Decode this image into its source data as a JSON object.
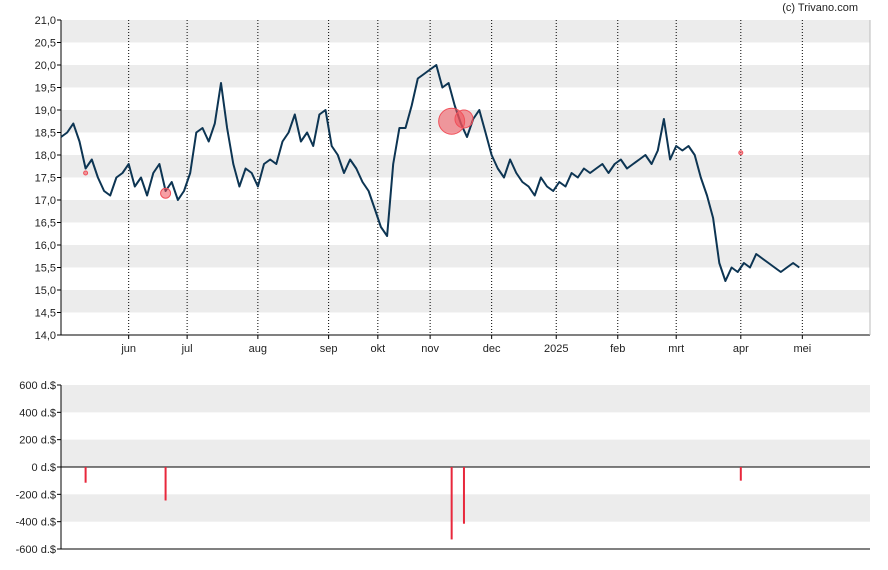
{
  "credit": "(c) Trivano.com",
  "colors": {
    "line": "#0d3553",
    "marker": "#f0505a",
    "band": "#ececec",
    "bar": "#e8283c",
    "axis": "#000000"
  },
  "chart_data": [
    {
      "type": "line",
      "title": "",
      "xlabel": "",
      "ylabel": "",
      "ylim": [
        14.0,
        21.0
      ],
      "xlim": [
        0,
        263
      ],
      "y_ticks": [
        "14,0",
        "14,5",
        "15,0",
        "15,5",
        "16,0",
        "16,5",
        "17,0",
        "17,5",
        "18,0",
        "18,5",
        "19,0",
        "19,5",
        "20,0",
        "20,5",
        "21,0"
      ],
      "x_ticks": [
        {
          "x": 22,
          "label": "jun"
        },
        {
          "x": 41,
          "label": "jul"
        },
        {
          "x": 64,
          "label": "aug"
        },
        {
          "x": 87,
          "label": "sep"
        },
        {
          "x": 103,
          "label": "okt"
        },
        {
          "x": 120,
          "label": "nov"
        },
        {
          "x": 140,
          "label": "dec"
        },
        {
          "x": 161,
          "label": "2025"
        },
        {
          "x": 181,
          "label": "feb"
        },
        {
          "x": 200,
          "label": "mrt"
        },
        {
          "x": 221,
          "label": "apr"
        },
        {
          "x": 241,
          "label": "mei"
        }
      ],
      "grid": true,
      "series": [
        {
          "x": [
            0,
            2,
            4,
            6,
            8,
            10,
            12,
            14,
            16,
            18,
            20,
            22,
            24,
            26,
            28,
            30,
            32,
            34,
            36,
            38,
            40,
            42,
            44,
            46,
            48,
            50,
            52,
            54,
            56,
            58,
            60,
            62,
            64,
            66,
            68,
            70,
            72,
            74,
            76,
            78,
            80,
            82,
            84,
            86,
            88,
            90,
            92,
            94,
            96,
            98,
            100,
            102,
            104,
            106,
            108,
            110,
            112,
            114,
            116,
            118,
            120,
            122,
            124,
            126,
            128,
            130,
            132,
            134,
            136,
            138,
            140,
            142,
            144,
            146,
            148,
            150,
            152,
            154,
            156,
            158,
            160,
            162,
            164,
            166,
            168,
            170,
            172,
            174,
            176,
            178,
            180,
            182,
            184,
            186,
            188,
            190,
            192,
            194,
            196,
            198,
            200,
            202,
            204,
            206,
            208,
            210,
            212,
            214,
            216,
            218,
            220,
            222,
            224,
            226,
            228,
            230,
            232,
            234,
            236,
            238,
            240
          ],
          "values": [
            18.4,
            18.5,
            18.7,
            18.3,
            17.7,
            17.9,
            17.5,
            17.2,
            17.1,
            17.5,
            17.6,
            17.8,
            17.3,
            17.5,
            17.1,
            17.6,
            17.8,
            17.2,
            17.4,
            17.0,
            17.2,
            17.6,
            18.5,
            18.6,
            18.3,
            18.7,
            19.6,
            18.6,
            17.8,
            17.3,
            17.7,
            17.6,
            17.3,
            17.8,
            17.9,
            17.8,
            18.3,
            18.5,
            18.9,
            18.3,
            18.5,
            18.2,
            18.9,
            19.0,
            18.2,
            18.0,
            17.6,
            17.9,
            17.7,
            17.4,
            17.2,
            16.8,
            16.4,
            16.2,
            17.8,
            18.6,
            18.6,
            19.1,
            19.7,
            19.8,
            19.9,
            20.0,
            19.5,
            19.6,
            19.1,
            18.7,
            18.4,
            18.8,
            19.0,
            18.5,
            18.0,
            17.7,
            17.5,
            17.9,
            17.6,
            17.4,
            17.3,
            17.1,
            17.5,
            17.3,
            17.2,
            17.4,
            17.3,
            17.6,
            17.5,
            17.7,
            17.6,
            17.7,
            17.8,
            17.6,
            17.8,
            17.9,
            17.7,
            17.8,
            17.9,
            18.0,
            17.8,
            18.1,
            18.8,
            17.9,
            18.2,
            18.1,
            18.2,
            18.0,
            17.5,
            17.1,
            16.6,
            15.6,
            15.2,
            15.5,
            15.4,
            15.6,
            15.5,
            15.8,
            15.7,
            15.6,
            15.5,
            15.4,
            15.5,
            15.6,
            15.5
          ]
        }
      ],
      "markers": [
        {
          "x": 8,
          "y": 17.6,
          "r": 2
        },
        {
          "x": 34,
          "y": 17.15,
          "r": 5
        },
        {
          "x": 127,
          "y": 18.75,
          "r": 13
        },
        {
          "x": 131,
          "y": 18.8,
          "r": 9
        },
        {
          "x": 221,
          "y": 18.05,
          "r": 2
        }
      ]
    },
    {
      "type": "bar",
      "title": "",
      "xlabel": "",
      "ylabel": "",
      "ylim": [
        -600,
        600
      ],
      "xlim": [
        0,
        263
      ],
      "y_ticks": [
        "600 d.$",
        "400 d.$",
        "200 d.$",
        "0 d.$",
        "-200 d.$",
        "-400 d.$",
        "-600 d.$"
      ],
      "grid": true,
      "bars": [
        {
          "x": 8,
          "value": -115
        },
        {
          "x": 34,
          "value": -245
        },
        {
          "x": 127,
          "value": -530
        },
        {
          "x": 131,
          "value": -415
        },
        {
          "x": 221,
          "value": -100
        }
      ]
    }
  ]
}
